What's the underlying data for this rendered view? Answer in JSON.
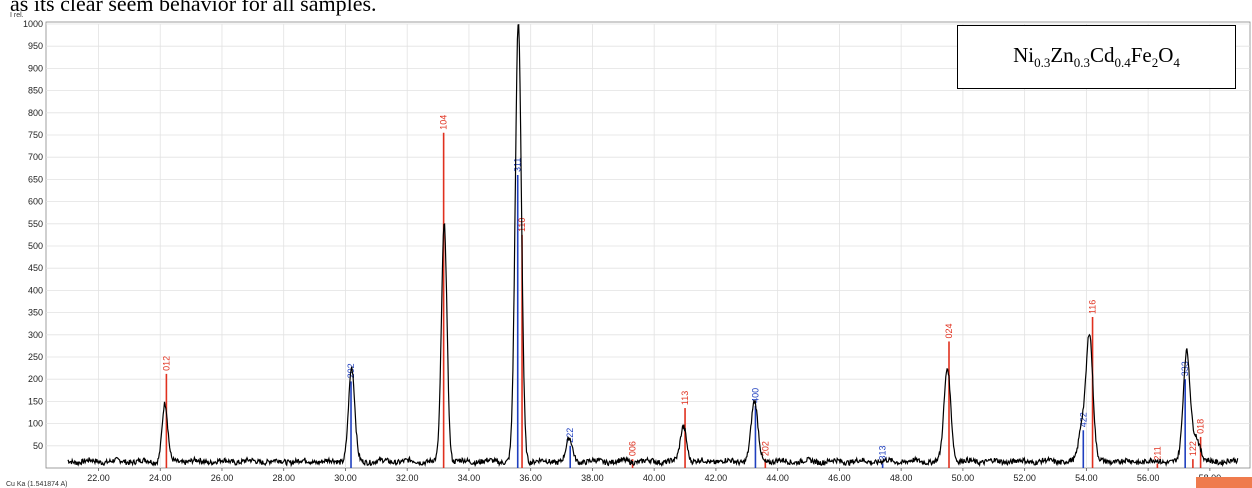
{
  "document": {
    "text_line": "as its clear seem behavior for all samples."
  },
  "formula": {
    "parts": [
      {
        "t": "Ni",
        "sub": "0.3"
      },
      {
        "t": "Zn",
        "sub": "0.3"
      },
      {
        "t": " Cd",
        "sub": "0.4"
      },
      {
        "t": " Fe",
        "sub": "2"
      },
      {
        "t": "O",
        "sub": "4"
      }
    ]
  },
  "chart_data": {
    "type": "line",
    "title": "",
    "xlabel": "",
    "ylabel": "I rel.",
    "bottom_left_note": "Cu Ka (1.541874 A)",
    "xlim": [
      20.3,
      59.3
    ],
    "ylim": [
      0,
      1000
    ],
    "xticks": [
      "22.00",
      "24.00",
      "26.00",
      "28.00",
      "30.00",
      "32.00",
      "34.00",
      "36.00",
      "38.00",
      "40.00",
      "42.00",
      "44.00",
      "46.00",
      "48.00",
      "50.00",
      "52.00",
      "54.00",
      "56.00",
      "58.00"
    ],
    "yticks": [
      "50",
      "100",
      "150",
      "200",
      "250",
      "300",
      "350",
      "400",
      "450",
      "500",
      "550",
      "600",
      "650",
      "700",
      "750",
      "800",
      "850",
      "900",
      "950",
      "1000"
    ],
    "grid": true,
    "series": [
      {
        "color": "#000000",
        "peaks": [
          {
            "x": 24.15,
            "y": 145,
            "w": 0.09
          },
          {
            "x": 30.2,
            "y": 225,
            "w": 0.1
          },
          {
            "x": 33.2,
            "y": 550,
            "w": 0.09
          },
          {
            "x": 35.6,
            "y": 1000,
            "w": 0.1
          },
          {
            "x": 37.25,
            "y": 65,
            "w": 0.1
          },
          {
            "x": 40.95,
            "y": 95,
            "w": 0.1
          },
          {
            "x": 43.25,
            "y": 148,
            "w": 0.11
          },
          {
            "x": 49.5,
            "y": 225,
            "w": 0.11
          },
          {
            "x": 53.85,
            "y": 90,
            "w": 0.1
          },
          {
            "x": 54.1,
            "y": 305,
            "w": 0.11
          },
          {
            "x": 57.25,
            "y": 262,
            "w": 0.11
          },
          {
            "x": 57.55,
            "y": 70,
            "w": 0.12
          }
        ],
        "baseline": 15
      }
    ],
    "reference_lines": [
      {
        "x": 24.2,
        "h": 212,
        "label": "012",
        "color": "#e0301e"
      },
      {
        "x": 30.18,
        "h": 195,
        "label": "202",
        "color": "#1f3fbf"
      },
      {
        "x": 33.18,
        "h": 755,
        "label": "104",
        "color": "#e0301e"
      },
      {
        "x": 35.58,
        "h": 660,
        "label": "311",
        "color": "#1f3fbf"
      },
      {
        "x": 35.72,
        "h": 525,
        "label": "110",
        "color": "#e0301e"
      },
      {
        "x": 37.28,
        "h": 50,
        "label": "222",
        "color": "#1f3fbf"
      },
      {
        "x": 39.3,
        "h": 20,
        "label": "006",
        "color": "#e0301e"
      },
      {
        "x": 41.0,
        "h": 135,
        "label": "113",
        "color": "#e0301e"
      },
      {
        "x": 43.28,
        "h": 140,
        "label": "400",
        "color": "#1f3fbf"
      },
      {
        "x": 43.6,
        "h": 20,
        "label": "202",
        "color": "#e0301e"
      },
      {
        "x": 47.4,
        "h": 10,
        "label": "313",
        "color": "#1f3fbf"
      },
      {
        "x": 49.55,
        "h": 285,
        "label": "024",
        "color": "#e0301e"
      },
      {
        "x": 53.9,
        "h": 85,
        "label": "422",
        "color": "#1f3fbf"
      },
      {
        "x": 54.2,
        "h": 340,
        "label": "116",
        "color": "#e0301e"
      },
      {
        "x": 56.3,
        "h": 10,
        "label": "211",
        "color": "#e0301e"
      },
      {
        "x": 57.2,
        "h": 200,
        "label": "333",
        "color": "#1f3fbf"
      },
      {
        "x": 57.45,
        "h": 20,
        "label": "122",
        "color": "#e0301e"
      },
      {
        "x": 57.7,
        "h": 70,
        "label": "018",
        "color": "#e0301e"
      }
    ],
    "legend": "top-right"
  }
}
